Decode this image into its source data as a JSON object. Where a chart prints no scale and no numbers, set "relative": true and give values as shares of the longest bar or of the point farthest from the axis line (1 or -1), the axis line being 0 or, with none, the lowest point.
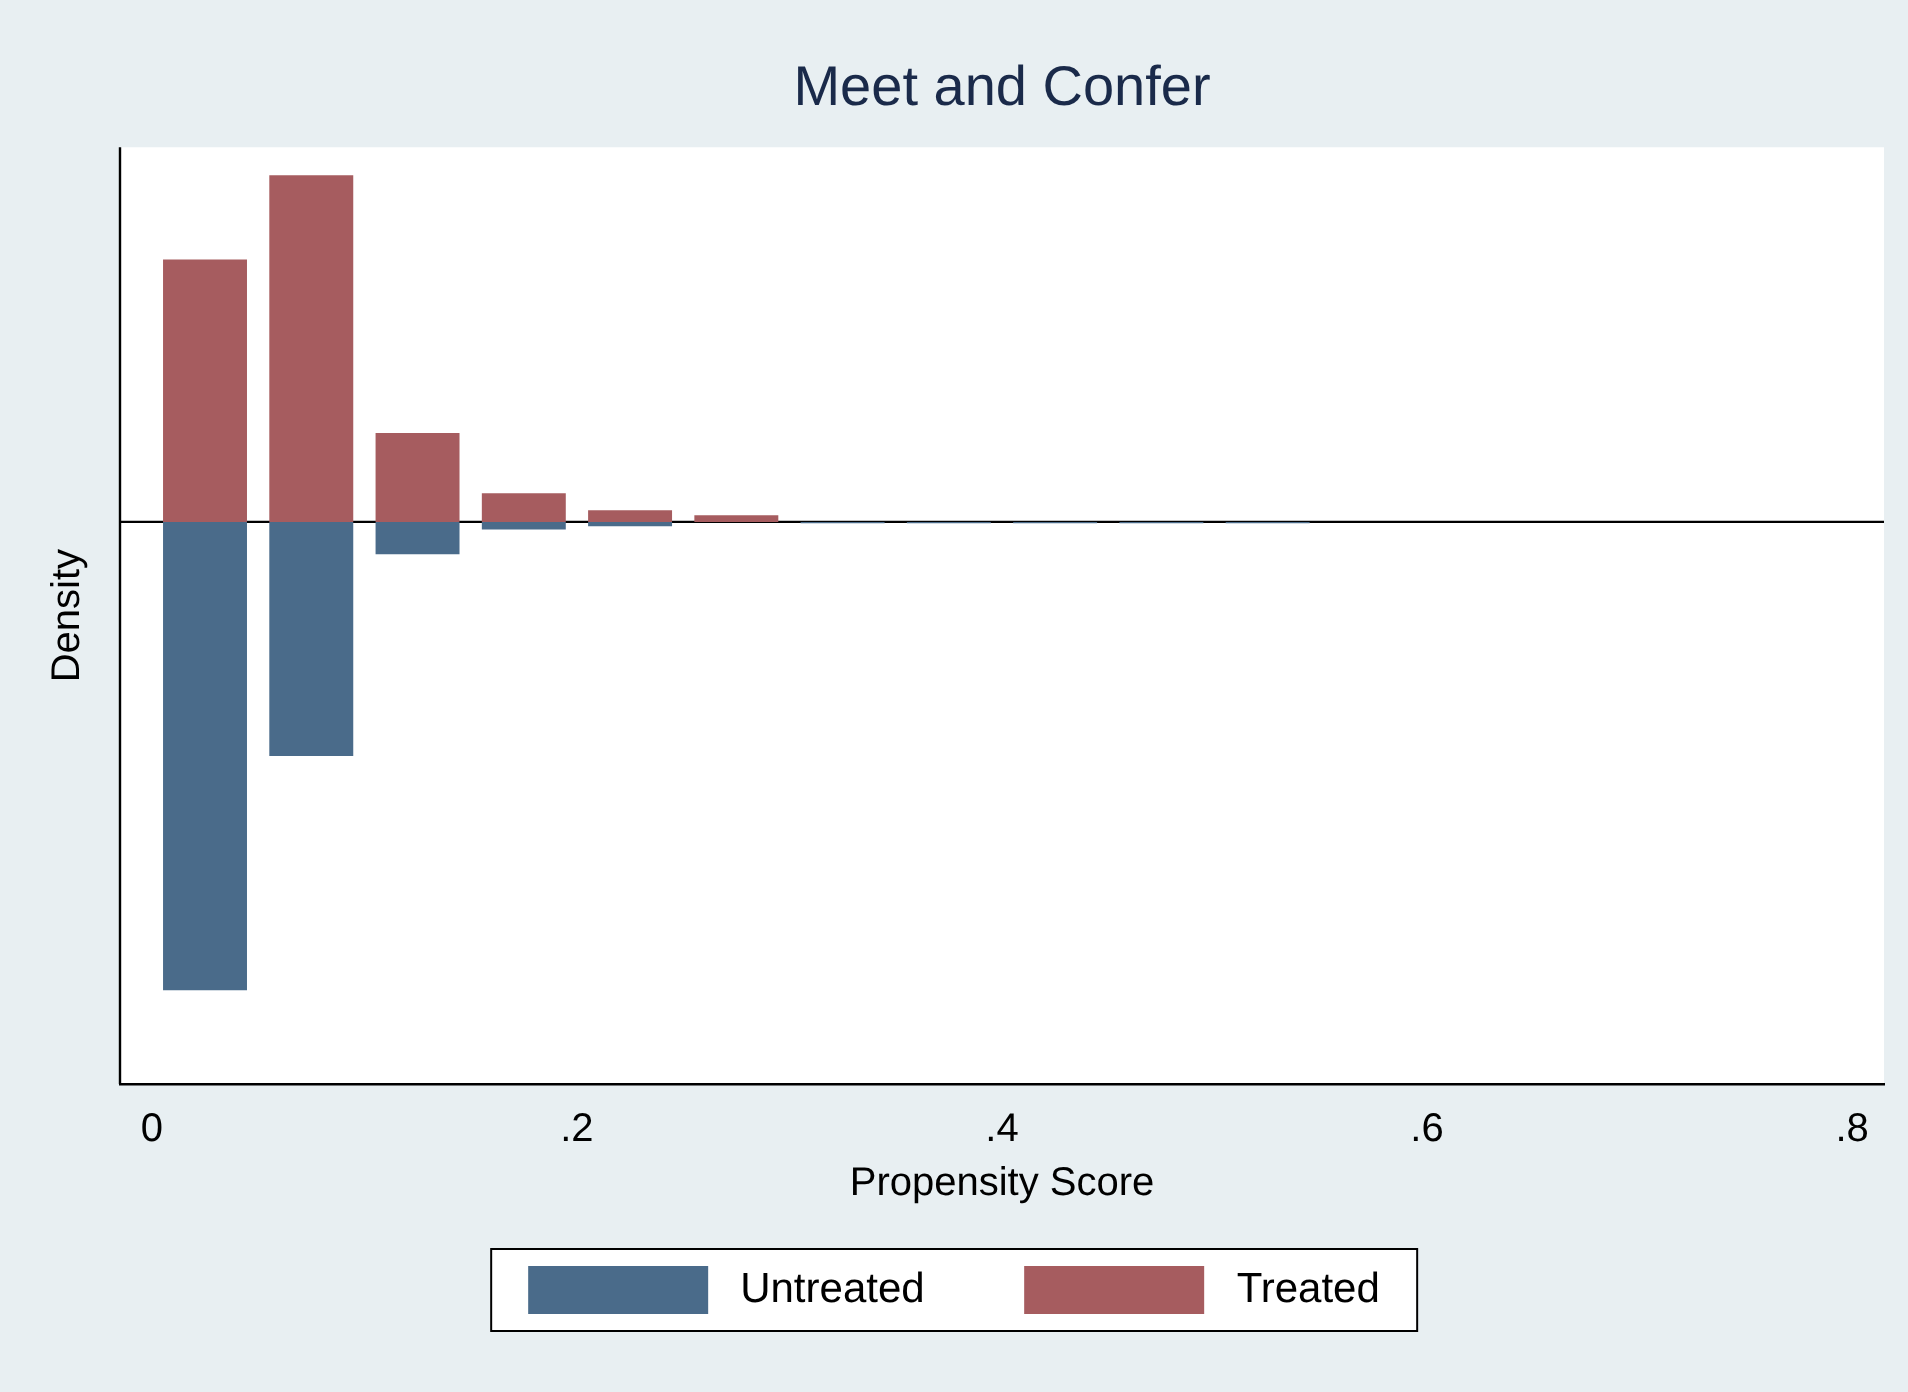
{
  "chart_data": {
    "type": "bar",
    "title": "Meet and Confer",
    "xlabel": "Propensity Score",
    "ylabel": "Density",
    "relative": true,
    "x": [
      0.025,
      0.075,
      0.125,
      0.175,
      0.225,
      0.275,
      0.325,
      0.375,
      0.425,
      0.475,
      0.525
    ],
    "xlim": [
      -0.015,
      0.815
    ],
    "xticks": [
      0,
      {
        "value": 0.2,
        "label": ".2"
      },
      {
        "value": 0.4,
        "label": ".4"
      },
      {
        "value": 0.6,
        "label": ".6"
      },
      {
        "value": 0.8,
        "label": ".8"
      }
    ],
    "series": [
      {
        "name": "Untreated",
        "color": "#4a6b8a",
        "values": [
          -1,
          -0.5,
          -0.069,
          -0.016,
          -0.009,
          null,
          -0.003,
          -0.003,
          -0.003,
          -0.003,
          -0.003
        ]
      },
      {
        "name": "Treated",
        "color": "#a65c5f",
        "values": [
          0.56,
          0.74,
          0.19,
          0.061,
          0.025,
          0.014,
          null,
          null,
          null,
          null,
          null
        ]
      }
    ],
    "grid": false,
    "legend": "bottom"
  }
}
